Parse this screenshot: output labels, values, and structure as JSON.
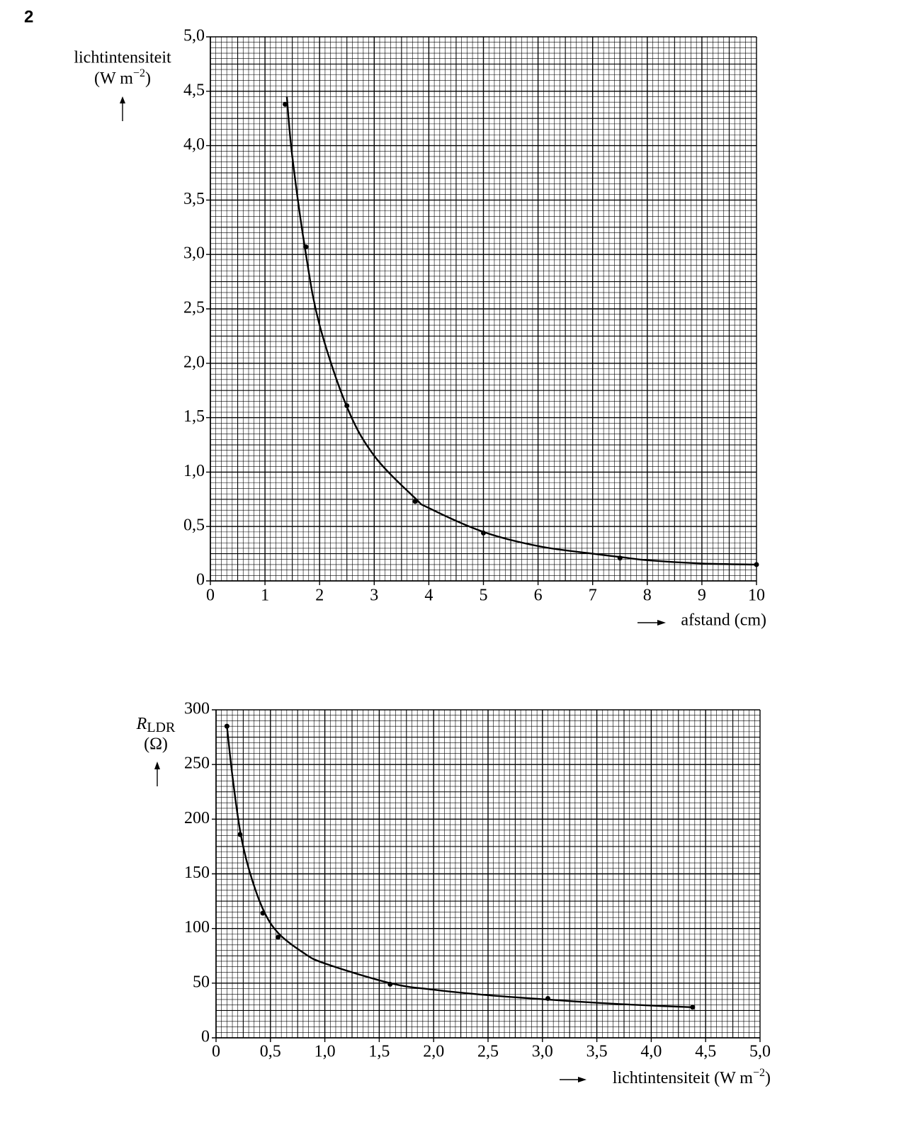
{
  "question_number": "2",
  "chart_data": [
    {
      "type": "scatter",
      "y_label": "lichtintensiteit",
      "y_unit": {
        "base": "(W m",
        "exponent": "−2",
        "close": ")"
      },
      "x_label": "afstand (cm)",
      "xlim": [
        0,
        10
      ],
      "xticks": [
        0,
        1,
        2,
        3,
        4,
        5,
        6,
        7,
        8,
        9,
        10
      ],
      "ylim": [
        0,
        5
      ],
      "yticks": [
        0,
        {
          "value": 0.5,
          "label": "0,5"
        },
        {
          "value": 1,
          "label": "1,0"
        },
        {
          "value": 1.5,
          "label": "1,5"
        },
        {
          "value": 2,
          "label": "2,0"
        },
        {
          "value": 2.5,
          "label": "2,5"
        },
        {
          "value": 3,
          "label": "3,0"
        },
        {
          "value": 3.5,
          "label": "3,5"
        },
        {
          "value": 4,
          "label": "4,0"
        },
        {
          "value": 4.5,
          "label": "4,5"
        },
        {
          "value": 5,
          "label": "5,0"
        }
      ],
      "grid": true,
      "series": [
        {
          "type": "scatter",
          "color": "#000000",
          "x": [
            1.37,
            1.75,
            2.5,
            3.75,
            5.0,
            7.5,
            10
          ],
          "values": [
            4.38,
            3.07,
            1.61,
            0.73,
            0.44,
            0.21,
            0.15
          ]
        },
        {
          "type": "line",
          "color": "#000000",
          "x": [
            1.4,
            1.5,
            1.75,
            2,
            2.5,
            3,
            3.75,
            4,
            5,
            6,
            7,
            7.5,
            8,
            9,
            10
          ],
          "values": [
            4.45,
            3.9,
            3.0,
            2.35,
            1.6,
            1.15,
            0.76,
            0.67,
            0.45,
            0.32,
            0.25,
            0.22,
            0.19,
            0.16,
            0.15
          ]
        }
      ]
    },
    {
      "type": "scatter",
      "y_label": {
        "symbol": "R",
        "subscript": "LDR"
      },
      "y_unit": "(Ω)",
      "x_label": {
        "base": "lichtintensiteit (W m",
        "exponent": "−2",
        "close": ")"
      },
      "xlim": [
        0,
        5
      ],
      "xticks": [
        0,
        {
          "value": 0.5,
          "label": "0,5"
        },
        {
          "value": 1,
          "label": "1,0"
        },
        {
          "value": 1.5,
          "label": "1,5"
        },
        {
          "value": 2,
          "label": "2,0"
        },
        {
          "value": 2.5,
          "label": "2,5"
        },
        {
          "value": 3,
          "label": "3,0"
        },
        {
          "value": 3.5,
          "label": "3,5"
        },
        {
          "value": 4,
          "label": "4,0"
        },
        {
          "value": 4.5,
          "label": "4,5"
        },
        {
          "value": 5,
          "label": "5,0"
        }
      ],
      "ylim": [
        0,
        300
      ],
      "yticks": [
        0,
        50,
        100,
        150,
        200,
        250,
        300
      ],
      "grid": true,
      "series": [
        {
          "type": "scatter",
          "color": "#000000",
          "x": [
            0.1,
            0.22,
            0.43,
            0.57,
            1.6,
            3.05,
            4.38
          ],
          "values": [
            285,
            186,
            114,
            92,
            49,
            36,
            28
          ]
        },
        {
          "type": "line",
          "color": "#000000",
          "x": [
            0.1,
            0.15,
            0.22,
            0.3,
            0.43,
            0.57,
            0.8,
            1.0,
            1.6,
            2.0,
            2.5,
            3.05,
            3.5,
            4.0,
            4.38
          ],
          "values": [
            285,
            240,
            190,
            155,
            118,
            96,
            78,
            68,
            50,
            44,
            39,
            35,
            32,
            29.5,
            28
          ]
        }
      ]
    }
  ]
}
